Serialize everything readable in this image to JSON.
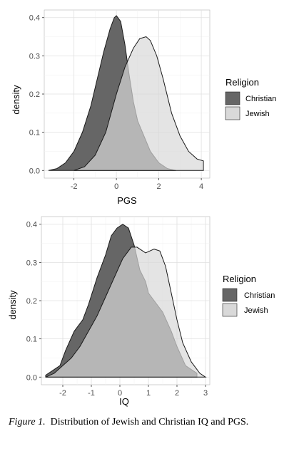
{
  "chart_data": [
    {
      "type": "area",
      "subtype": "density",
      "title": "",
      "xlabel": "PGS",
      "ylabel": "density",
      "xlim": [
        -3.4,
        4.4
      ],
      "ylim": [
        -0.02,
        0.42
      ],
      "x_ticks": [
        -2,
        0,
        2,
        4
      ],
      "y_ticks": [
        0.0,
        0.1,
        0.2,
        0.3,
        0.4
      ],
      "x_tick_labels": [
        "-2",
        "0",
        "2",
        "4"
      ],
      "y_tick_labels": [
        "0.0",
        "0.1",
        "0.2",
        "0.3",
        "0.4"
      ],
      "grid": true,
      "legend": {
        "title": "Religion",
        "position": "right"
      },
      "series": [
        {
          "name": "Christian",
          "color": "#666666",
          "x": [
            -3.2,
            -2.8,
            -2.4,
            -2.0,
            -1.6,
            -1.2,
            -0.9,
            -0.6,
            -0.3,
            -0.1,
            0.0,
            0.2,
            0.4,
            0.6,
            0.8,
            1.0,
            1.3,
            1.6,
            2.0,
            2.4,
            2.8
          ],
          "y": [
            0.0,
            0.005,
            0.02,
            0.05,
            0.1,
            0.17,
            0.24,
            0.31,
            0.37,
            0.4,
            0.405,
            0.39,
            0.33,
            0.25,
            0.18,
            0.13,
            0.09,
            0.05,
            0.02,
            0.005,
            0.0
          ]
        },
        {
          "name": "Jewish",
          "color": "#d9d9d9",
          "x": [
            -2.0,
            -1.5,
            -1.0,
            -0.5,
            0.0,
            0.4,
            0.8,
            1.1,
            1.4,
            1.6,
            1.9,
            2.2,
            2.6,
            3.0,
            3.4,
            3.8,
            4.1
          ],
          "y": [
            0.0,
            0.01,
            0.04,
            0.1,
            0.2,
            0.27,
            0.32,
            0.345,
            0.35,
            0.34,
            0.3,
            0.24,
            0.15,
            0.09,
            0.05,
            0.03,
            0.025
          ]
        }
      ]
    },
    {
      "type": "area",
      "subtype": "density",
      "title": "",
      "xlabel": "IQ",
      "ylabel": "density",
      "xlim": [
        -2.75,
        3.15
      ],
      "ylim": [
        -0.02,
        0.42
      ],
      "x_ticks": [
        -2,
        -1,
        0,
        1,
        2,
        3
      ],
      "y_ticks": [
        0.0,
        0.1,
        0.2,
        0.3,
        0.4
      ],
      "x_tick_labels": [
        "-2",
        "-1",
        "0",
        "1",
        "2",
        "3"
      ],
      "y_tick_labels": [
        "0.0",
        "0.1",
        "0.2",
        "0.3",
        "0.4"
      ],
      "grid": true,
      "legend": {
        "title": "Religion",
        "position": "right"
      },
      "series": [
        {
          "name": "Christian",
          "color": "#666666",
          "x": [
            -2.6,
            -2.3,
            -2.1,
            -1.9,
            -1.6,
            -1.3,
            -1.1,
            -0.8,
            -0.5,
            -0.3,
            -0.1,
            0.1,
            0.3,
            0.5,
            0.7,
            0.9,
            1.0,
            1.2,
            1.5,
            1.8,
            2.0,
            2.3,
            2.5,
            2.7
          ],
          "y": [
            0.005,
            0.02,
            0.03,
            0.07,
            0.12,
            0.15,
            0.19,
            0.26,
            0.32,
            0.37,
            0.39,
            0.4,
            0.39,
            0.345,
            0.28,
            0.25,
            0.22,
            0.2,
            0.17,
            0.12,
            0.08,
            0.03,
            0.02,
            0.01
          ]
        },
        {
          "name": "Jewish",
          "color": "#d9d9d9",
          "x": [
            -2.6,
            -2.3,
            -2.0,
            -1.7,
            -1.4,
            -1.1,
            -0.8,
            -0.5,
            -0.2,
            0.1,
            0.4,
            0.6,
            0.9,
            1.2,
            1.4,
            1.6,
            1.8,
            2.0,
            2.2,
            2.5,
            2.8,
            3.0
          ],
          "y": [
            0.0,
            0.01,
            0.03,
            0.05,
            0.08,
            0.12,
            0.16,
            0.21,
            0.26,
            0.31,
            0.34,
            0.34,
            0.325,
            0.335,
            0.33,
            0.29,
            0.22,
            0.15,
            0.09,
            0.04,
            0.01,
            0.0
          ]
        }
      ]
    }
  ],
  "caption": {
    "label": "Figure 1.",
    "text": "Distribution of Jewish and Christian IQ and PGS."
  }
}
